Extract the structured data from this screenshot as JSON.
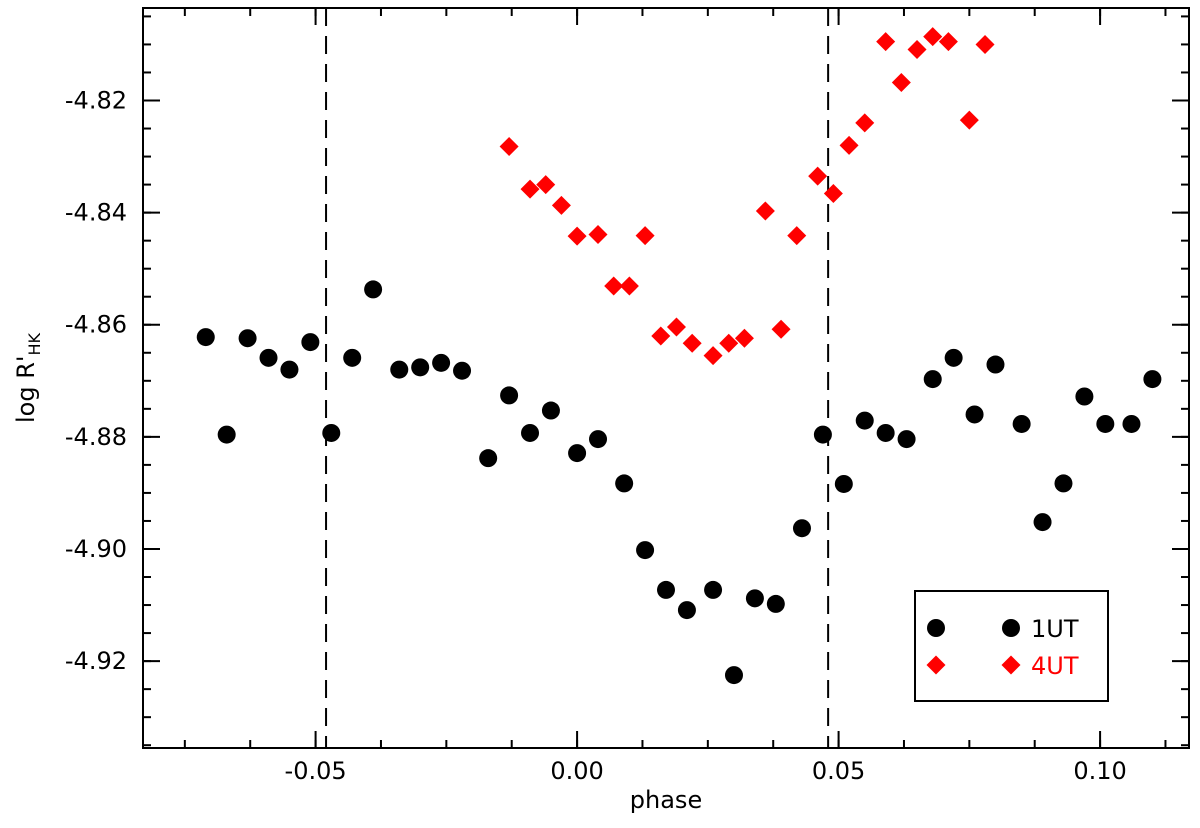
{
  "chart_data": {
    "type": "scatter",
    "xlabel": "phase",
    "ylabel_main": "log R'",
    "ylabel_sub": "HK",
    "xlim": [
      -0.083,
      0.117
    ],
    "ylim": [
      -4.9355,
      -4.8035
    ],
    "x_ticks": [
      -0.05,
      0.0,
      0.05,
      0.1
    ],
    "x_tick_labels": [
      "-0.05",
      "0.00",
      "0.05",
      "0.10"
    ],
    "y_ticks": [
      -4.82,
      -4.84,
      -4.86,
      -4.88,
      -4.9,
      -4.92
    ],
    "y_tick_labels": [
      "-4.82",
      "-4.84",
      "-4.86",
      "-4.88",
      "-4.90",
      "-4.92"
    ],
    "x_minor_step": 0.0125,
    "y_minor_step": 0.005,
    "vlines": [
      -0.048,
      0.048
    ],
    "legend_position": "bottom-right",
    "series": [
      {
        "name": "1UT",
        "color": "#000000",
        "marker": "circle",
        "points": [
          [
            -0.071,
            -4.8622
          ],
          [
            -0.067,
            -4.8796
          ],
          [
            -0.063,
            -4.8624
          ],
          [
            -0.059,
            -4.8659
          ],
          [
            -0.055,
            -4.868
          ],
          [
            -0.051,
            -4.8631
          ],
          [
            -0.047,
            -4.8793
          ],
          [
            -0.043,
            -4.8659
          ],
          [
            -0.039,
            -4.8537
          ],
          [
            -0.034,
            -4.868
          ],
          [
            -0.03,
            -4.8676
          ],
          [
            -0.026,
            -4.8668
          ],
          [
            -0.022,
            -4.8682
          ],
          [
            -0.017,
            -4.8838
          ],
          [
            -0.013,
            -4.8726
          ],
          [
            -0.009,
            -4.8793
          ],
          [
            -0.005,
            -4.8753
          ],
          [
            0.0,
            -4.8829
          ],
          [
            0.004,
            -4.8804
          ],
          [
            0.009,
            -4.8883
          ],
          [
            0.013,
            -4.9002
          ],
          [
            0.017,
            -4.9073
          ],
          [
            0.021,
            -4.9109
          ],
          [
            0.026,
            -4.9073
          ],
          [
            0.03,
            -4.9225
          ],
          [
            0.034,
            -4.9088
          ],
          [
            0.038,
            -4.9098
          ],
          [
            0.043,
            -4.8963
          ],
          [
            0.047,
            -4.8796
          ],
          [
            0.051,
            -4.8884
          ],
          [
            0.055,
            -4.8771
          ],
          [
            0.059,
            -4.8793
          ],
          [
            0.063,
            -4.8804
          ],
          [
            0.068,
            -4.8697
          ],
          [
            0.072,
            -4.8659
          ],
          [
            0.076,
            -4.876
          ],
          [
            0.08,
            -4.8671
          ],
          [
            0.085,
            -4.8777
          ],
          [
            0.089,
            -4.8952
          ],
          [
            0.093,
            -4.8883
          ],
          [
            0.097,
            -4.8728
          ],
          [
            0.101,
            -4.8777
          ],
          [
            0.106,
            -4.8777
          ],
          [
            0.11,
            -4.8697
          ]
        ]
      },
      {
        "name": "4UT",
        "color": "#ff0000",
        "marker": "diamond",
        "points": [
          [
            -0.013,
            -4.8282
          ],
          [
            -0.009,
            -4.8358
          ],
          [
            -0.006,
            -4.835
          ],
          [
            -0.003,
            -4.8387
          ],
          [
            0.0,
            -4.8442
          ],
          [
            0.004,
            -4.8439
          ],
          [
            0.007,
            -4.8531
          ],
          [
            0.01,
            -4.8531
          ],
          [
            0.013,
            -4.8441
          ],
          [
            0.016,
            -4.862
          ],
          [
            0.019,
            -4.8604
          ],
          [
            0.022,
            -4.8633
          ],
          [
            0.026,
            -4.8655
          ],
          [
            0.029,
            -4.8633
          ],
          [
            0.032,
            -4.8624
          ],
          [
            0.036,
            -4.8397
          ],
          [
            0.039,
            -4.8608
          ],
          [
            0.042,
            -4.8441
          ],
          [
            0.046,
            -4.8335
          ],
          [
            0.049,
            -4.8366
          ],
          [
            0.052,
            -4.828
          ],
          [
            0.055,
            -4.824
          ],
          [
            0.059,
            -4.8095
          ],
          [
            0.062,
            -4.8168
          ],
          [
            0.065,
            -4.8109
          ],
          [
            0.068,
            -4.8086
          ],
          [
            0.071,
            -4.8095
          ],
          [
            0.075,
            -4.8235
          ],
          [
            0.078,
            -4.81
          ]
        ]
      }
    ]
  }
}
